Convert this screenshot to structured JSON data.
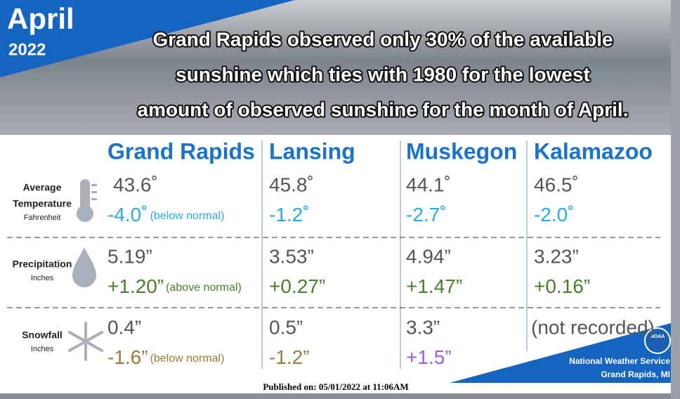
{
  "header": {
    "month": "April",
    "year": "2022",
    "headline": [
      "Grand Rapids observed only 30% of the available",
      "sunshine which ties with 1980 for the lowest",
      "amount of observed sunshine for the month of April."
    ]
  },
  "table": {
    "columns": [
      "Grand Rapids",
      "Lansing",
      "Muskegon",
      "Kalamazoo"
    ],
    "rows": [
      {
        "label": [
          "Average",
          "Temperature"
        ],
        "unit": "Fahrenheit",
        "cells": [
          {
            "value": "43.6˚",
            "departure": "-4.0˚",
            "note": "(below normal)",
            "departure_color": "#29abe2"
          },
          {
            "value": "45.8˚",
            "departure": "-1.2˚",
            "departure_color": "#29abe2"
          },
          {
            "value": "44.1˚",
            "departure": "-2.7˚",
            "departure_color": "#29abe2"
          },
          {
            "value": "46.5˚",
            "departure": "-2.0˚",
            "departure_color": "#29abe2"
          }
        ]
      },
      {
        "label": [
          "Precipitation"
        ],
        "unit": "Inches",
        "cells": [
          {
            "value": "5.19”",
            "departure": "+1.20”",
            "note": "(above normal)",
            "departure_color": "#4b7d2b"
          },
          {
            "value": "3.53”",
            "departure": "+0.27”",
            "departure_color": "#4b7d2b"
          },
          {
            "value": "4.94”",
            "departure": "+1.47”",
            "departure_color": "#4b7d2b"
          },
          {
            "value": "3.23”",
            "departure": "+0.16”",
            "departure_color": "#4b7d2b"
          }
        ]
      },
      {
        "label": [
          "Snowfall"
        ],
        "unit": "Inches",
        "cells": [
          {
            "value": "0.4”",
            "departure": "-1.6”",
            "note": "(below normal)",
            "departure_color": "#9a7b3c"
          },
          {
            "value": "0.5”",
            "departure": "-1.2”",
            "departure_color": "#9a7b3c"
          },
          {
            "value": "3.3”",
            "departure": "+1.5”",
            "departure_color": "#9b5ee0"
          },
          {
            "value": "(not recorded)"
          }
        ]
      }
    ]
  },
  "footer": {
    "published": "Published on: 05/01/2022 at 11:06AM",
    "logo": "NOAA",
    "office": [
      "National Weather Service",
      "Grand Rapids, MI"
    ]
  }
}
